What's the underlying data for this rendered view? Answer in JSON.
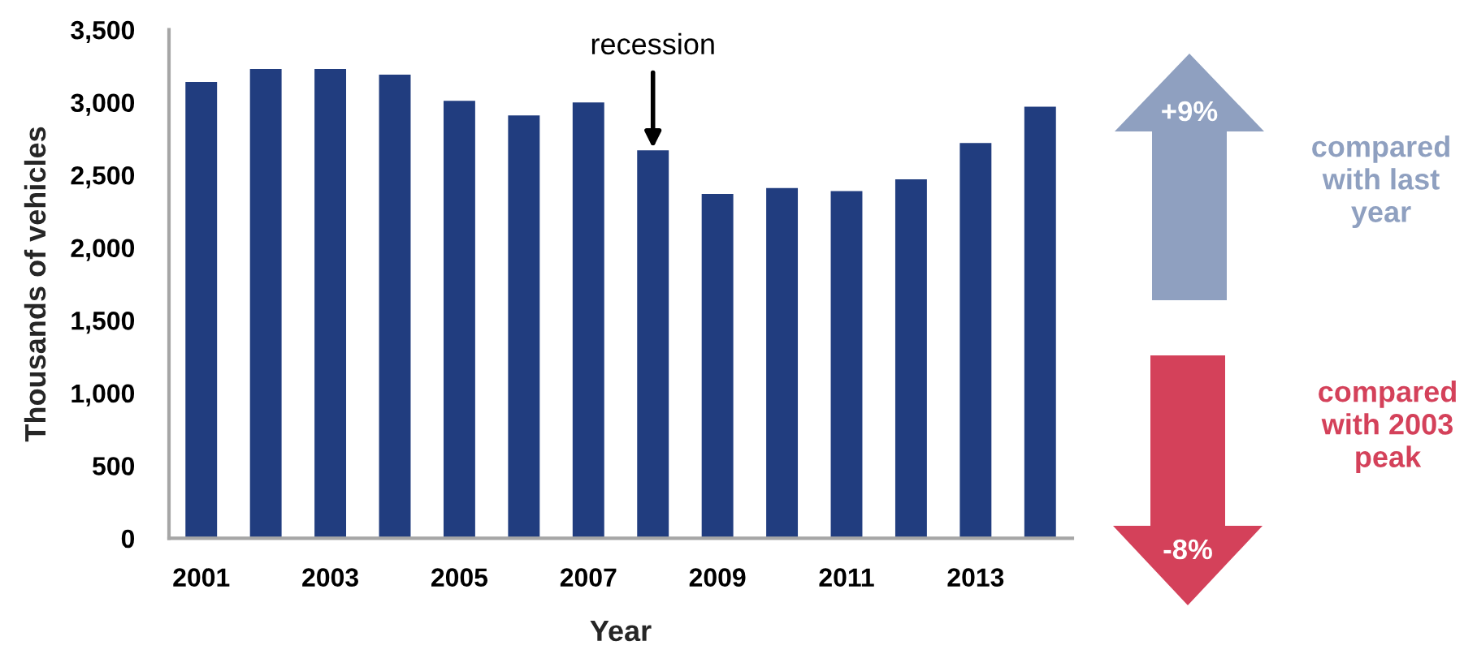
{
  "chart_data": {
    "type": "bar",
    "x": [
      2001,
      2002,
      2003,
      2004,
      2005,
      2006,
      2007,
      2008,
      2009,
      2010,
      2011,
      2012,
      2013,
      2014
    ],
    "values": [
      3140,
      3230,
      3230,
      3190,
      3010,
      2910,
      3000,
      2670,
      2370,
      2410,
      2390,
      2470,
      2720,
      2970
    ],
    "color": "#213d7f",
    "xlim": [
      2000.5,
      2014.5
    ],
    "xticks": [
      2001,
      2003,
      2005,
      2007,
      2009,
      2011,
      2013
    ],
    "ylim": [
      0,
      3500
    ],
    "yticks": [
      0,
      500,
      {
        "value": 1000,
        "label": "1,000"
      },
      {
        "value": 1500,
        "label": "1,500"
      },
      {
        "value": 2000,
        "label": "2,000"
      },
      {
        "value": 2500,
        "label": "2,500"
      },
      {
        "value": 3000,
        "label": "3,000"
      },
      {
        "value": 3500,
        "label": "3,500"
      }
    ],
    "xlabel": "Year",
    "ylabel": "Thousands of vehicles",
    "annotations": [
      {
        "text": "recession",
        "x": 2008,
        "y": 2670
      },
      "+9%",
      "compared\nwith last\nyear",
      "-8%",
      "compared\nwith 2003\npeak"
    ]
  }
}
